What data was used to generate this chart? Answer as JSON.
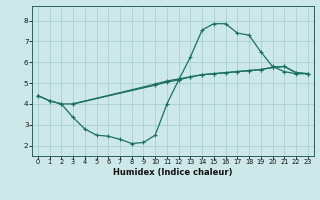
{
  "xlabel": "Humidex (Indice chaleur)",
  "bg_color": "#cde8e8",
  "grid_color": "#aacfcf",
  "line_color": "#1a7060",
  "xlim": [
    -0.5,
    23.5
  ],
  "ylim": [
    1.5,
    8.7
  ],
  "xticks": [
    0,
    1,
    2,
    3,
    4,
    5,
    6,
    7,
    8,
    9,
    10,
    11,
    12,
    13,
    14,
    15,
    16,
    17,
    18,
    19,
    20,
    21,
    22,
    23
  ],
  "yticks": [
    2,
    3,
    4,
    5,
    6,
    7,
    8
  ],
  "curve1_x": [
    0,
    1,
    2,
    3,
    10,
    11,
    12,
    13,
    14,
    15,
    16,
    17,
    18,
    19,
    20,
    21,
    22,
    23
  ],
  "curve1_y": [
    4.4,
    4.15,
    4.0,
    4.0,
    4.9,
    5.05,
    5.15,
    5.3,
    5.4,
    5.45,
    5.5,
    5.55,
    5.6,
    5.65,
    5.75,
    5.8,
    5.5,
    5.45
  ],
  "curve2_x": [
    0,
    1,
    2,
    3,
    4,
    5,
    6,
    7,
    8,
    9,
    10,
    11,
    12,
    13,
    14,
    15,
    16,
    17,
    18,
    19,
    20,
    21,
    22,
    23
  ],
  "curve2_y": [
    4.4,
    4.15,
    4.0,
    3.35,
    2.8,
    2.5,
    2.45,
    2.3,
    2.1,
    2.15,
    2.5,
    4.0,
    5.15,
    6.25,
    7.55,
    7.85,
    7.85,
    7.4,
    7.3,
    6.5,
    5.8,
    5.55,
    5.45,
    5.45
  ],
  "curve3_x": [
    3,
    10,
    11,
    12,
    13,
    14,
    15,
    16,
    17,
    18,
    19,
    20,
    21,
    22,
    23
  ],
  "curve3_y": [
    4.0,
    4.95,
    5.1,
    5.2,
    5.3,
    5.4,
    5.45,
    5.5,
    5.55,
    5.6,
    5.65,
    5.75,
    5.8,
    5.5,
    5.45
  ]
}
